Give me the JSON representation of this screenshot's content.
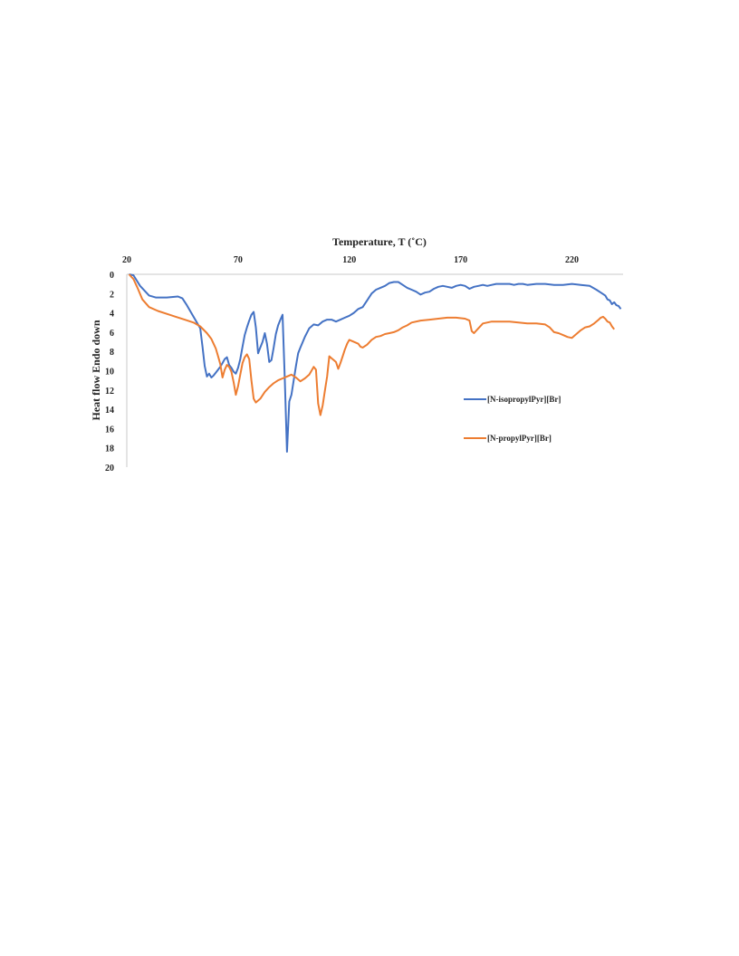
{
  "chart_data": {
    "type": "line",
    "xlabel": "Temperature, T (˚C)",
    "ylabel": "Heat flow Endo down",
    "xlim": [
      20,
      243
    ],
    "ylim": [
      0,
      20
    ],
    "y_inverted": true,
    "x_axis_position": "top",
    "x_ticks": [
      "20",
      "70",
      "120",
      "170",
      "220"
    ],
    "y_ticks": [
      "0",
      "2",
      "4",
      "6",
      "8",
      "10",
      "12",
      "14",
      "16",
      "18",
      "20"
    ],
    "grid": false,
    "legend_position": "right",
    "series": [
      {
        "name": "[N-isopropylPyr][Br]",
        "color": "#4472C4",
        "points": [
          [
            21,
            0
          ],
          [
            23,
            0.1
          ],
          [
            26,
            1.2
          ],
          [
            30,
            2.2
          ],
          [
            33,
            2.4
          ],
          [
            38,
            2.4
          ],
          [
            43,
            2.3
          ],
          [
            45,
            2.5
          ],
          [
            47,
            3.2
          ],
          [
            50,
            4.4
          ],
          [
            53,
            5.6
          ],
          [
            54,
            7.5
          ],
          [
            55,
            9.5
          ],
          [
            56,
            10.6
          ],
          [
            57,
            10.3
          ],
          [
            58,
            10.7
          ],
          [
            59,
            10.5
          ],
          [
            60,
            10.2
          ],
          [
            61,
            9.9
          ],
          [
            62,
            9.6
          ],
          [
            63,
            9.2
          ],
          [
            64,
            8.8
          ],
          [
            65,
            8.6
          ],
          [
            66,
            9.4
          ],
          [
            67,
            9.7
          ],
          [
            68,
            10.1
          ],
          [
            69,
            10.3
          ],
          [
            70,
            9.7
          ],
          [
            71,
            8.8
          ],
          [
            72,
            7.5
          ],
          [
            73,
            6.3
          ],
          [
            74,
            5.5
          ],
          [
            75,
            4.8
          ],
          [
            76,
            4.2
          ],
          [
            77,
            3.9
          ],
          [
            78,
            5.5
          ],
          [
            79,
            8.2
          ],
          [
            80,
            7.6
          ],
          [
            81,
            7.0
          ],
          [
            82,
            6.1
          ],
          [
            83,
            7.2
          ],
          [
            84,
            9.1
          ],
          [
            85,
            8.9
          ],
          [
            86,
            7.6
          ],
          [
            87,
            6.2
          ],
          [
            88,
            5.3
          ],
          [
            89,
            4.7
          ],
          [
            90,
            4.2
          ],
          [
            91,
            11.0
          ],
          [
            92,
            18.4
          ],
          [
            93,
            13.2
          ],
          [
            94,
            12.5
          ],
          [
            95,
            11.0
          ],
          [
            96,
            9.5
          ],
          [
            97,
            8.2
          ],
          [
            98,
            7.6
          ],
          [
            100,
            6.5
          ],
          [
            102,
            5.6
          ],
          [
            104,
            5.2
          ],
          [
            106,
            5.3
          ],
          [
            108,
            4.9
          ],
          [
            110,
            4.7
          ],
          [
            112,
            4.7
          ],
          [
            114,
            4.9
          ],
          [
            116,
            4.7
          ],
          [
            118,
            4.5
          ],
          [
            120,
            4.3
          ],
          [
            122,
            4.0
          ],
          [
            124,
            3.6
          ],
          [
            126,
            3.4
          ],
          [
            128,
            2.7
          ],
          [
            130,
            2.0
          ],
          [
            132,
            1.6
          ],
          [
            134,
            1.4
          ],
          [
            136,
            1.2
          ],
          [
            138,
            0.9
          ],
          [
            140,
            0.8
          ],
          [
            142,
            0.8
          ],
          [
            144,
            1.1
          ],
          [
            146,
            1.4
          ],
          [
            148,
            1.6
          ],
          [
            150,
            1.8
          ],
          [
            152,
            2.1
          ],
          [
            154,
            1.9
          ],
          [
            156,
            1.8
          ],
          [
            158,
            1.5
          ],
          [
            160,
            1.3
          ],
          [
            162,
            1.2
          ],
          [
            164,
            1.3
          ],
          [
            166,
            1.4
          ],
          [
            168,
            1.2
          ],
          [
            170,
            1.1
          ],
          [
            172,
            1.2
          ],
          [
            174,
            1.5
          ],
          [
            176,
            1.3
          ],
          [
            178,
            1.2
          ],
          [
            180,
            1.1
          ],
          [
            182,
            1.2
          ],
          [
            184,
            1.1
          ],
          [
            186,
            1.0
          ],
          [
            188,
            1.0
          ],
          [
            190,
            1.0
          ],
          [
            192,
            1.0
          ],
          [
            194,
            1.1
          ],
          [
            196,
            1.0
          ],
          [
            198,
            1.0
          ],
          [
            200,
            1.1
          ],
          [
            204,
            1.0
          ],
          [
            208,
            1.0
          ],
          [
            212,
            1.1
          ],
          [
            216,
            1.1
          ],
          [
            220,
            1.0
          ],
          [
            224,
            1.1
          ],
          [
            228,
            1.2
          ],
          [
            231,
            1.6
          ],
          [
            233,
            1.9
          ],
          [
            235,
            2.2
          ],
          [
            236,
            2.6
          ],
          [
            237,
            2.7
          ],
          [
            238,
            3.1
          ],
          [
            239,
            2.9
          ],
          [
            240,
            3.2
          ],
          [
            241,
            3.3
          ],
          [
            242,
            3.6
          ]
        ]
      },
      {
        "name": "[N-propylPyr][Br]",
        "color": "#ED7D31",
        "points": [
          [
            21,
            0
          ],
          [
            23,
            0.5
          ],
          [
            25,
            1.5
          ],
          [
            27,
            2.6
          ],
          [
            30,
            3.4
          ],
          [
            34,
            3.8
          ],
          [
            38,
            4.1
          ],
          [
            42,
            4.4
          ],
          [
            46,
            4.7
          ],
          [
            50,
            5.0
          ],
          [
            53,
            5.4
          ],
          [
            56,
            6.1
          ],
          [
            58,
            6.7
          ],
          [
            60,
            7.7
          ],
          [
            61,
            8.5
          ],
          [
            62,
            9.3
          ],
          [
            63,
            10.7
          ],
          [
            64,
            9.9
          ],
          [
            65,
            9.4
          ],
          [
            66,
            9.6
          ],
          [
            67,
            10.1
          ],
          [
            68,
            11.2
          ],
          [
            69,
            12.5
          ],
          [
            70,
            11.6
          ],
          [
            71,
            10.4
          ],
          [
            72,
            9.2
          ],
          [
            73,
            8.6
          ],
          [
            74,
            8.3
          ],
          [
            75,
            8.8
          ],
          [
            76,
            11.0
          ],
          [
            77,
            12.9
          ],
          [
            78,
            13.3
          ],
          [
            80,
            12.9
          ],
          [
            82,
            12.2
          ],
          [
            84,
            11.7
          ],
          [
            86,
            11.3
          ],
          [
            88,
            11.0
          ],
          [
            90,
            10.8
          ],
          [
            92,
            10.6
          ],
          [
            94,
            10.4
          ],
          [
            96,
            10.7
          ],
          [
            98,
            11.1
          ],
          [
            100,
            10.8
          ],
          [
            102,
            10.4
          ],
          [
            104,
            9.6
          ],
          [
            105,
            9.9
          ],
          [
            106,
            13.4
          ],
          [
            107,
            14.6
          ],
          [
            108,
            13.6
          ],
          [
            109,
            12.1
          ],
          [
            110,
            10.6
          ],
          [
            111,
            8.5
          ],
          [
            112,
            8.7
          ],
          [
            113,
            8.9
          ],
          [
            114,
            9.1
          ],
          [
            115,
            9.8
          ],
          [
            116,
            9.2
          ],
          [
            117,
            8.5
          ],
          [
            118,
            7.8
          ],
          [
            119,
            7.2
          ],
          [
            120,
            6.8
          ],
          [
            122,
            7.0
          ],
          [
            124,
            7.2
          ],
          [
            125,
            7.5
          ],
          [
            126,
            7.6
          ],
          [
            128,
            7.3
          ],
          [
            130,
            6.8
          ],
          [
            132,
            6.5
          ],
          [
            134,
            6.4
          ],
          [
            136,
            6.2
          ],
          [
            138,
            6.1
          ],
          [
            140,
            6.0
          ],
          [
            142,
            5.8
          ],
          [
            144,
            5.5
          ],
          [
            146,
            5.3
          ],
          [
            148,
            5.0
          ],
          [
            152,
            4.8
          ],
          [
            156,
            4.7
          ],
          [
            160,
            4.6
          ],
          [
            164,
            4.5
          ],
          [
            168,
            4.5
          ],
          [
            172,
            4.6
          ],
          [
            174,
            4.8
          ],
          [
            175,
            5.9
          ],
          [
            176,
            6.1
          ],
          [
            178,
            5.6
          ],
          [
            180,
            5.1
          ],
          [
            184,
            4.9
          ],
          [
            188,
            4.9
          ],
          [
            192,
            4.9
          ],
          [
            196,
            5.0
          ],
          [
            200,
            5.1
          ],
          [
            204,
            5.1
          ],
          [
            208,
            5.2
          ],
          [
            210,
            5.5
          ],
          [
            212,
            6.0
          ],
          [
            214,
            6.1
          ],
          [
            216,
            6.3
          ],
          [
            218,
            6.5
          ],
          [
            220,
            6.6
          ],
          [
            222,
            6.2
          ],
          [
            224,
            5.8
          ],
          [
            226,
            5.5
          ],
          [
            228,
            5.4
          ],
          [
            230,
            5.1
          ],
          [
            232,
            4.7
          ],
          [
            233,
            4.5
          ],
          [
            234,
            4.4
          ],
          [
            235,
            4.6
          ],
          [
            236,
            4.9
          ],
          [
            237,
            5.0
          ],
          [
            238,
            5.4
          ],
          [
            239,
            5.7
          ]
        ]
      }
    ]
  }
}
